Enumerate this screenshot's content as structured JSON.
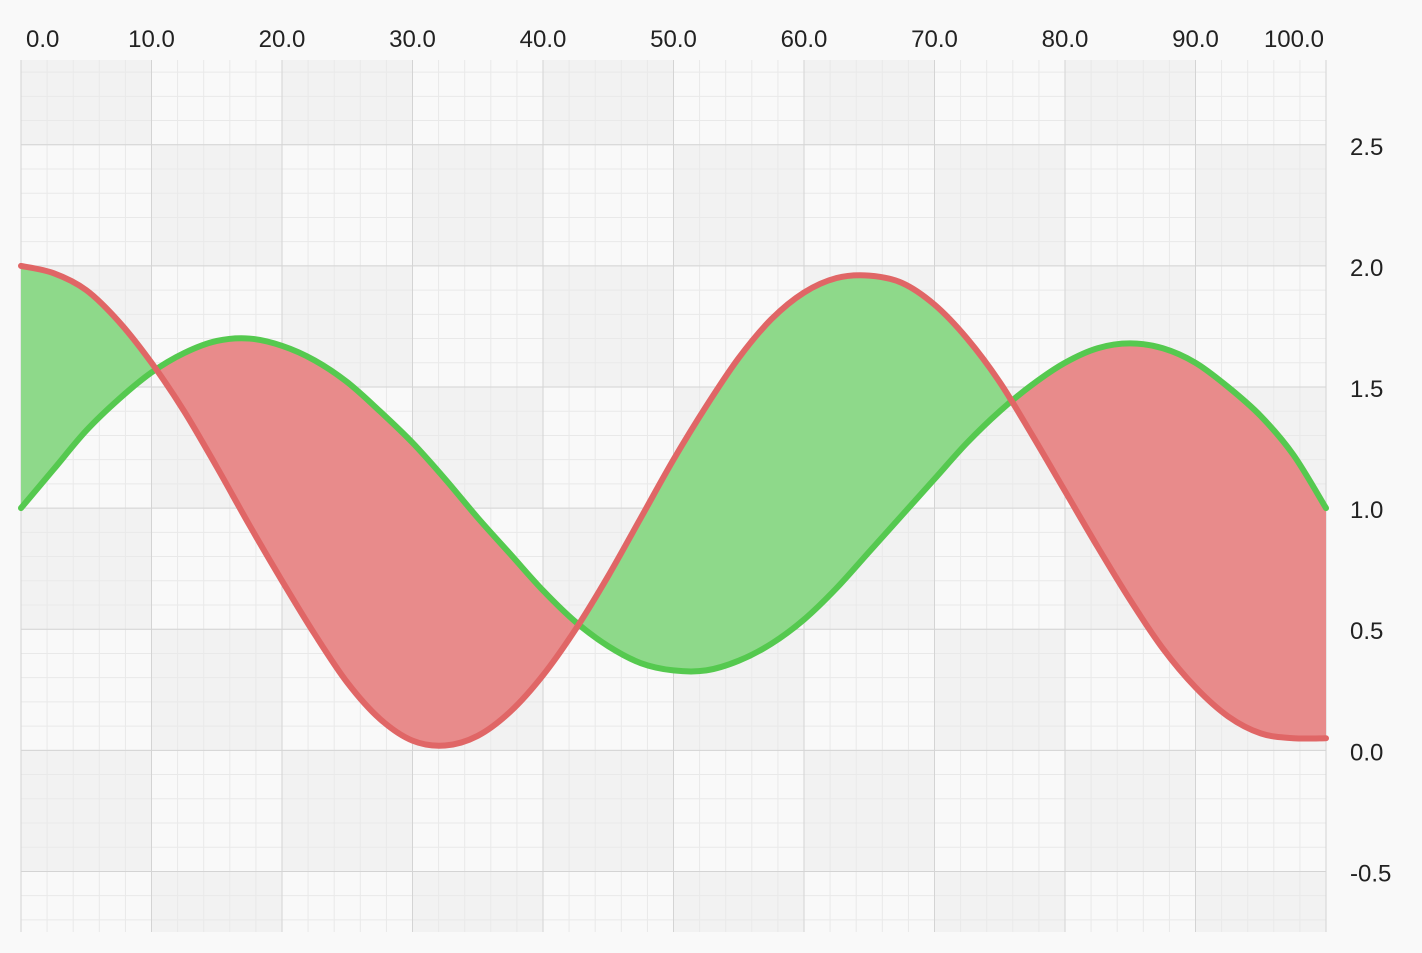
{
  "chart_data": {
    "type": "area",
    "title": "",
    "xlabel": "",
    "ylabel": "",
    "xlim": [
      0,
      100
    ],
    "ylim": [
      -0.75,
      2.85
    ],
    "x_ticks": [
      {
        "value": 0,
        "label": "0.0"
      },
      {
        "value": 10,
        "label": "10.0"
      },
      {
        "value": 20,
        "label": "20.0"
      },
      {
        "value": 30,
        "label": "30.0"
      },
      {
        "value": 40,
        "label": "40.0"
      },
      {
        "value": 50,
        "label": "50.0"
      },
      {
        "value": 60,
        "label": "60.0"
      },
      {
        "value": 70,
        "label": "70.0"
      },
      {
        "value": 80,
        "label": "80.0"
      },
      {
        "value": 90,
        "label": "90.0"
      },
      {
        "value": 100,
        "label": "100.0"
      }
    ],
    "y_ticks": [
      {
        "value": 2.5,
        "label": "2.5"
      },
      {
        "value": 2.0,
        "label": "2.0"
      },
      {
        "value": 1.5,
        "label": "1.5"
      },
      {
        "value": 1.0,
        "label": "1.0"
      },
      {
        "value": 0.5,
        "label": "0.5"
      },
      {
        "value": 0.0,
        "label": "0.0"
      },
      {
        "value": -0.5,
        "label": "-0.5"
      }
    ],
    "x_axis_position": "top",
    "y_axis_position": "right",
    "grid": true,
    "minor_grid": true,
    "x": [
      0,
      2.5,
      5,
      7.5,
      10,
      12.5,
      15,
      17.5,
      20,
      22.5,
      25,
      27.5,
      30,
      32.5,
      35,
      37.5,
      40,
      42.5,
      45,
      47.5,
      50,
      52.5,
      55,
      57.5,
      60,
      62.5,
      65,
      67.5,
      70,
      72.5,
      75,
      77.5,
      80,
      82.5,
      85,
      87.5,
      90,
      92.5,
      95,
      97.5,
      100
    ],
    "series": [
      {
        "color": "#55c94f",
        "values": [
          1.0,
          1.16,
          1.32,
          1.45,
          1.56,
          1.64,
          1.69,
          1.7,
          1.67,
          1.61,
          1.52,
          1.4,
          1.27,
          1.12,
          0.96,
          0.81,
          0.66,
          0.53,
          0.43,
          0.36,
          0.33,
          0.33,
          0.37,
          0.44,
          0.54,
          0.67,
          0.82,
          0.97,
          1.12,
          1.27,
          1.4,
          1.51,
          1.6,
          1.66,
          1.68,
          1.66,
          1.6,
          1.5,
          1.38,
          1.22,
          1.0
        ]
      },
      {
        "color": "#e06666",
        "values": [
          2.0,
          1.97,
          1.9,
          1.77,
          1.6,
          1.4,
          1.17,
          0.93,
          0.7,
          0.48,
          0.28,
          0.13,
          0.04,
          0.02,
          0.06,
          0.16,
          0.31,
          0.5,
          0.72,
          0.96,
          1.2,
          1.42,
          1.62,
          1.78,
          1.89,
          1.95,
          1.96,
          1.93,
          1.84,
          1.7,
          1.52,
          1.3,
          1.07,
          0.84,
          0.62,
          0.42,
          0.26,
          0.14,
          0.07,
          0.05,
          0.05
        ]
      }
    ],
    "fill_between": {
      "series_a_above_color": "#8ed98a",
      "series_b_above_color": "#e88b8b"
    },
    "colors": {
      "background": "#f9f9f9",
      "band": "#f2f2f2",
      "major_grid": "#d4d4d4",
      "minor_grid": "#e9e9e9",
      "text": "#222222"
    }
  }
}
